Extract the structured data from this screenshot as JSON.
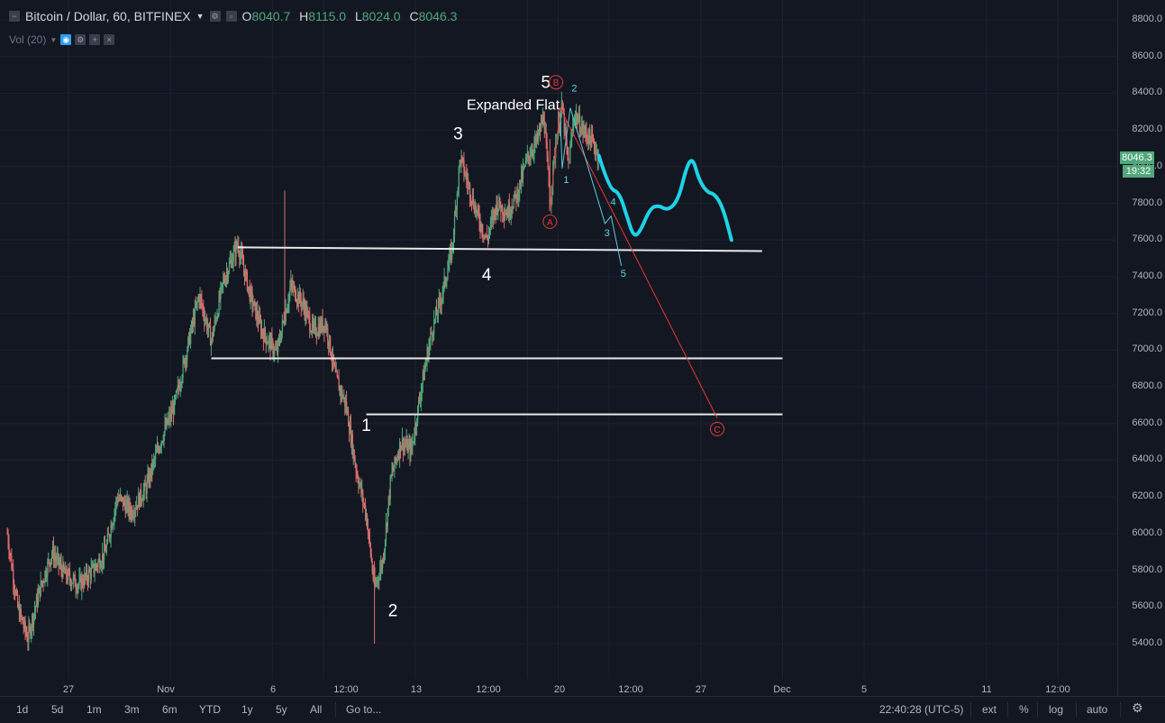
{
  "legend": {
    "symbol": "Bitcoin / Dollar, 60, BITFINEX",
    "open_label": "O",
    "open": "8040.7",
    "high_label": "H",
    "high": "8115.0",
    "low_label": "L",
    "low": "8024.0",
    "close_label": "C",
    "close": "8046.3",
    "volume_study": "Vol (20)"
  },
  "price_scale": {
    "ticks": [
      "8800.0",
      "8600.0",
      "8400.0",
      "8200.0",
      "8000.0",
      "7800.0",
      "7600.0",
      "7400.0",
      "7200.0",
      "7000.0",
      "6800.0",
      "6600.0",
      "6400.0",
      "6200.0",
      "6000.0",
      "5800.0",
      "5600.0",
      "5400.0"
    ],
    "last_price": "8046.3",
    "countdown": "19:32"
  },
  "time_scale": {
    "ticks": [
      "27",
      "Nov",
      "6",
      "12:00",
      "13",
      "12:00",
      "20",
      "12:00",
      "27",
      "Dec",
      "5",
      "11",
      "12:00"
    ]
  },
  "bottom_bar": {
    "ranges": [
      "1d",
      "5d",
      "1m",
      "3m",
      "6m",
      "YTD",
      "1y",
      "5y",
      "All"
    ],
    "goto": "Go to...",
    "clock": "22:40:28 (UTC-5)",
    "ext": "ext",
    "percent": "%",
    "log": "log",
    "auto": "auto"
  },
  "colors": {
    "background": "#131722",
    "up": "#4fa87a",
    "down": "#e06b6b",
    "projection": "#1fd2e6",
    "wave_red": "#e53935"
  },
  "chart_data": {
    "type": "candlestick",
    "symbol": "Bitcoin / Dollar, 60, BITFINEX",
    "ylim": [
      5250,
      8950
    ],
    "y_ticks": [
      8800,
      8600,
      8400,
      8200,
      8000,
      7800,
      7600,
      7400,
      7200,
      7000,
      6800,
      6600,
      6400,
      6200,
      6000,
      5800,
      5600,
      5400
    ],
    "price_path": [
      {
        "day": 24.0,
        "price": 6000
      },
      {
        "day": 24.5,
        "price": 5600
      },
      {
        "day": 25.0,
        "price": 5430
      },
      {
        "day": 25.6,
        "price": 5700
      },
      {
        "day": 26.2,
        "price": 5900
      },
      {
        "day": 26.8,
        "price": 5780
      },
      {
        "day": 27.5,
        "price": 5720
      },
      {
        "day": 28.2,
        "price": 5800
      },
      {
        "day": 28.8,
        "price": 5900
      },
      {
        "day": 29.4,
        "price": 6200
      },
      {
        "day": 30.1,
        "price": 6120
      },
      {
        "day": 30.8,
        "price": 6250
      },
      {
        "day": 31.5,
        "price": 6500
      },
      {
        "day": 32.2,
        "price": 6700
      },
      {
        "day": 32.8,
        "price": 7000
      },
      {
        "day": 33.4,
        "price": 7300
      },
      {
        "day": 34.0,
        "price": 7050
      },
      {
        "day": 34.6,
        "price": 7380
      },
      {
        "day": 35.3,
        "price": 7580
      },
      {
        "day": 35.9,
        "price": 7300
      },
      {
        "day": 36.5,
        "price": 7100
      },
      {
        "day": 37.2,
        "price": 6980
      },
      {
        "day": 37.9,
        "price": 7350
      },
      {
        "day": 38.5,
        "price": 7250
      },
      {
        "day": 39.0,
        "price": 7100
      },
      {
        "day": 39.6,
        "price": 7150
      },
      {
        "day": 40.1,
        "price": 6850
      },
      {
        "day": 40.6,
        "price": 6700
      },
      {
        "day": 41.1,
        "price": 6350
      },
      {
        "day": 41.6,
        "price": 6100
      },
      {
        "day": 42.0,
        "price": 5700
      },
      {
        "day": 42.4,
        "price": 5850
      },
      {
        "day": 42.8,
        "price": 6300
      },
      {
        "day": 43.3,
        "price": 6500
      },
      {
        "day": 43.8,
        "price": 6450
      },
      {
        "day": 44.3,
        "price": 6800
      },
      {
        "day": 44.8,
        "price": 7100
      },
      {
        "day": 45.3,
        "price": 7300
      },
      {
        "day": 45.8,
        "price": 7550
      },
      {
        "day": 46.2,
        "price": 8050
      },
      {
        "day": 46.6,
        "price": 7900
      },
      {
        "day": 47.0,
        "price": 7750
      },
      {
        "day": 47.5,
        "price": 7600
      },
      {
        "day": 48.0,
        "price": 7800
      },
      {
        "day": 48.5,
        "price": 7750
      },
      {
        "day": 49.0,
        "price": 7850
      },
      {
        "day": 49.5,
        "price": 8050
      },
      {
        "day": 50.0,
        "price": 8150
      },
      {
        "day": 50.3,
        "price": 8280
      },
      {
        "day": 50.6,
        "price": 7800
      },
      {
        "day": 50.9,
        "price": 8150
      },
      {
        "day": 51.2,
        "price": 8330
      },
      {
        "day": 51.5,
        "price": 8000
      },
      {
        "day": 51.8,
        "price": 8290
      },
      {
        "day": 52.2,
        "price": 8200
      },
      {
        "day": 52.6,
        "price": 8150
      },
      {
        "day": 53.0,
        "price": 8060
      }
    ],
    "projection": [
      {
        "day": 53.0,
        "price": 8060
      },
      {
        "day": 53.5,
        "price": 7880
      },
      {
        "day": 54.0,
        "price": 7860
      },
      {
        "day": 54.4,
        "price": 7720
      },
      {
        "day": 54.7,
        "price": 7620
      },
      {
        "day": 55.0,
        "price": 7640
      },
      {
        "day": 55.5,
        "price": 7770
      },
      {
        "day": 55.9,
        "price": 7790
      },
      {
        "day": 56.4,
        "price": 7760
      },
      {
        "day": 56.9,
        "price": 7820
      },
      {
        "day": 57.3,
        "price": 8000
      },
      {
        "day": 57.6,
        "price": 8050
      },
      {
        "day": 57.9,
        "price": 7930
      },
      {
        "day": 58.3,
        "price": 7860
      },
      {
        "day": 58.7,
        "price": 7850
      },
      {
        "day": 59.1,
        "price": 7770
      },
      {
        "day": 59.5,
        "price": 7600
      }
    ],
    "horizontal_lines": [
      {
        "from_day": 35.3,
        "to_day": 61.0,
        "price_start": 7560,
        "price_end": 7540
      },
      {
        "from_day": 34.0,
        "to_day": 62.0,
        "price_start": 6955,
        "price_end": 6955
      },
      {
        "from_day": 41.6,
        "to_day": 62.0,
        "price_start": 6650,
        "price_end": 6650
      }
    ],
    "sub_wave_path": [
      {
        "day": 51.1,
        "price": 8290
      },
      {
        "day": 51.2,
        "price": 7990
      },
      {
        "day": 51.6,
        "price": 8320
      },
      {
        "day": 53.3,
        "price": 7690
      },
      {
        "day": 53.6,
        "price": 7730
      },
      {
        "day": 54.1,
        "price": 7460
      }
    ],
    "abc_path": [
      {
        "day": 50.6,
        "price": 7760
      },
      {
        "day": 51.1,
        "price": 8320
      },
      {
        "day": 58.8,
        "price": 6630
      }
    ],
    "annotations": [
      {
        "text": "1",
        "day": 41.6,
        "price": 6560
      },
      {
        "text": "2",
        "day": 42.9,
        "price": 5550
      },
      {
        "text": "3",
        "day": 46.1,
        "price": 8150
      },
      {
        "text": "4",
        "day": 47.5,
        "price": 7380
      },
      {
        "text": "5",
        "day": 50.4,
        "price": 8430
      },
      {
        "text": "Expanded Flat",
        "day": 48.8,
        "price": 8310
      },
      {
        "text": "1",
        "day": 51.4,
        "price": 7910
      },
      {
        "text": "2",
        "day": 51.8,
        "price": 8410
      },
      {
        "text": "3",
        "day": 53.4,
        "price": 7620
      },
      {
        "text": "4",
        "day": 53.7,
        "price": 7790
      },
      {
        "text": "5",
        "day": 54.2,
        "price": 7400
      }
    ],
    "circle_labels": [
      {
        "text": "A",
        "day": 50.6,
        "price": 7700
      },
      {
        "text": "B",
        "day": 50.9,
        "price": 8460
      },
      {
        "text": "C",
        "day": 58.8,
        "price": 6570
      }
    ]
  }
}
